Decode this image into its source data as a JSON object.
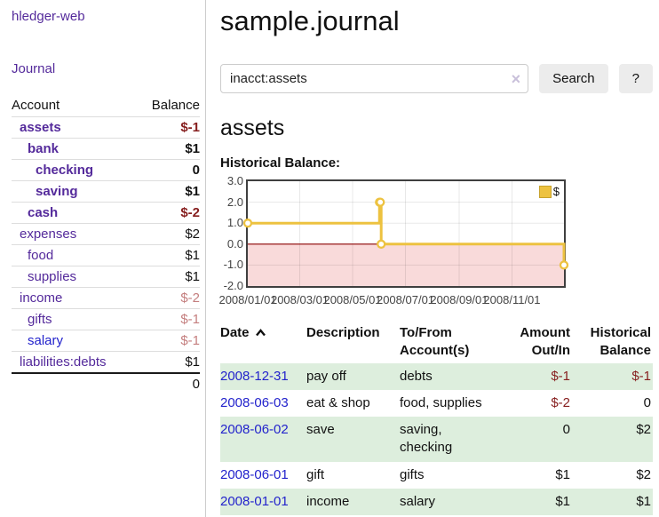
{
  "colors": {
    "link_purple": "#542a9b",
    "link_blue": "#2323cc",
    "negative_dark": "#861e1e",
    "negative_faded": "#c47e7e",
    "row_green": "#ddeedd",
    "chart_series": "#edc240",
    "chart_negative_region": "#f9dada",
    "chart_zero_line": "#8b0000"
  },
  "app": {
    "title": "hledger-web",
    "nav_journal": "Journal"
  },
  "sidebar": {
    "headers": [
      "Account",
      "Balance"
    ],
    "rows": [
      {
        "account": "assets",
        "depth": 1,
        "bold": true,
        "balance": "$-1",
        "balance_style": "negative"
      },
      {
        "account": "bank",
        "depth": 2,
        "bold": true,
        "balance": "$1",
        "balance_style": "normal"
      },
      {
        "account": "checking",
        "depth": 3,
        "bold": true,
        "balance": "0",
        "balance_style": "normal"
      },
      {
        "account": "saving",
        "depth": 3,
        "bold": true,
        "balance": "$1",
        "balance_style": "normal"
      },
      {
        "account": "cash",
        "depth": 2,
        "bold": true,
        "balance": "$-2",
        "balance_style": "negative"
      },
      {
        "account": "expenses",
        "depth": 1,
        "bold": false,
        "balance": "$2",
        "balance_style": "normal"
      },
      {
        "account": "food",
        "depth": 2,
        "bold": false,
        "balance": "$1",
        "balance_style": "normal"
      },
      {
        "account": "supplies",
        "depth": 2,
        "bold": false,
        "balance": "$1",
        "balance_style": "normal"
      },
      {
        "account": "income",
        "depth": 1,
        "bold": false,
        "balance": "$-2",
        "balance_style": "negative-faded"
      },
      {
        "account": "gifts",
        "depth": 2,
        "bold": false,
        "balance": "$-1",
        "balance_style": "negative-faded"
      },
      {
        "account": "salary",
        "depth": 2,
        "bold": false,
        "balance": "$-1",
        "balance_style": "negative-faded",
        "link_style": "blue"
      },
      {
        "account": "liabilities:debts",
        "depth": 1,
        "bold": false,
        "balance": "$1",
        "balance_style": "normal"
      }
    ],
    "total": "0"
  },
  "main": {
    "title": "sample.journal",
    "search": {
      "value": "inacct:assets",
      "clear_icon": "×",
      "search_label": "Search",
      "help_label": "?"
    },
    "account_heading": "assets",
    "chart_label": "Historical Balance:"
  },
  "chart_data": {
    "type": "line",
    "step": true,
    "title": "Historical Balance",
    "series": [
      {
        "name": "$",
        "color": "#edc240",
        "points": [
          [
            "2008-01-01",
            1
          ],
          [
            "2008-06-01",
            2
          ],
          [
            "2008-06-02",
            2
          ],
          [
            "2008-06-03",
            0
          ],
          [
            "2008-12-31",
            -1
          ]
        ]
      }
    ],
    "xlim": [
      "2008-01-01",
      "2008-12-31"
    ],
    "ylim": [
      -2,
      3
    ],
    "x_ticks": [
      {
        "date": "2008-01-01",
        "label": "2008/01/01"
      },
      {
        "date": "2008-03-01",
        "label": "2008/03/01"
      },
      {
        "date": "2008-05-01",
        "label": "2008/05/01"
      },
      {
        "date": "2008-07-01",
        "label": "2008/07/01"
      },
      {
        "date": "2008-09-01",
        "label": "2008/09/01"
      },
      {
        "date": "2008-11-01",
        "label": "2008/11/01"
      }
    ],
    "y_ticks": [
      {
        "value": 3,
        "label": "3.0"
      },
      {
        "value": 2,
        "label": "2.0"
      },
      {
        "value": 1,
        "label": "1.0"
      },
      {
        "value": 0,
        "label": "0.0"
      },
      {
        "value": -1,
        "label": "-1.0"
      },
      {
        "value": -2,
        "label": "-2.0"
      }
    ],
    "legend": {
      "position": "top-right",
      "label": "$"
    },
    "grid": true,
    "negative_region": true
  },
  "register": {
    "headers": [
      "Date",
      "Description",
      "To/From Account(s)",
      "Amount Out/In",
      "Historical Balance"
    ],
    "rows": [
      {
        "date": "2008-12-31",
        "description": "pay off",
        "accounts": "debts",
        "amount": "$-1",
        "balance": "$-1"
      },
      {
        "date": "2008-06-03",
        "description": "eat & shop",
        "accounts": "food, supplies",
        "amount": "$-2",
        "balance": "0"
      },
      {
        "date": "2008-06-02",
        "description": "save",
        "accounts": "saving, checking",
        "amount": "0",
        "balance": "$2"
      },
      {
        "date": "2008-06-01",
        "description": "gift",
        "accounts": "gifts",
        "amount": "$1",
        "balance": "$2"
      },
      {
        "date": "2008-01-01",
        "description": "income",
        "accounts": "salary",
        "amount": "$1",
        "balance": "$1"
      }
    ]
  }
}
